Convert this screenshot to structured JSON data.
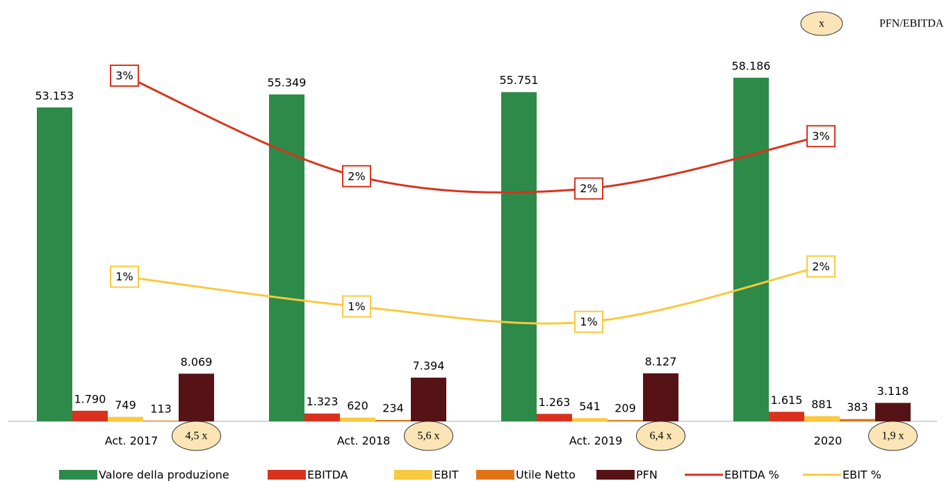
{
  "chart_data": {
    "type": "bar",
    "categories": [
      "Act. 2017",
      "Act. 2018",
      "Act. 2019",
      "2020"
    ],
    "ylim": [
      0,
      66000
    ],
    "y2lim": [
      0,
      3.8
    ],
    "series": [
      {
        "name": "Valore della produzione",
        "color": "#2e8a48",
        "values": [
          53153,
          55349,
          55751,
          58186
        ],
        "value_labels": [
          "53.153",
          "55.349",
          "55.751",
          "58.186"
        ]
      },
      {
        "name": "EBITDA",
        "color": "#d8321f",
        "values": [
          1790,
          1323,
          1263,
          1615
        ],
        "value_labels": [
          "1.790",
          "1.323",
          "1.263",
          "1.615"
        ]
      },
      {
        "name": "EBIT",
        "color": "#f9c93f",
        "values": [
          749,
          620,
          541,
          881
        ]
      },
      {
        "name": "Utile Netto",
        "color": "#e07318",
        "values": [
          113,
          234,
          209,
          383
        ]
      },
      {
        "name": "PFN",
        "color": "#561316",
        "values": [
          8069,
          7394,
          8127,
          3118
        ],
        "value_labels": [
          "8.069",
          "7.394",
          "8.127",
          "3.118"
        ]
      },
      {
        "name": "EBITDA %",
        "type": "line",
        "axis": "y2",
        "color": "#d8321f",
        "values": [
          3.37,
          2.39,
          2.27,
          2.78
        ],
        "value_labels": [
          "3%",
          "2%",
          "2%",
          "3%"
        ]
      },
      {
        "name": "EBIT %",
        "type": "line",
        "axis": "y2",
        "color": "#f9c93f",
        "values": [
          1.41,
          1.12,
          0.97,
          1.51
        ],
        "value_labels": [
          "1%",
          "1%",
          "1%",
          "2%"
        ]
      }
    ],
    "pfn_ebitda": {
      "symbol": "x",
      "label": "PFN/EBITDA",
      "values": [
        4.5,
        5.6,
        6.4,
        1.9
      ],
      "value_labels": [
        "4,5 x",
        "5,6 x",
        "6,4 x",
        "1,9 x"
      ]
    }
  }
}
